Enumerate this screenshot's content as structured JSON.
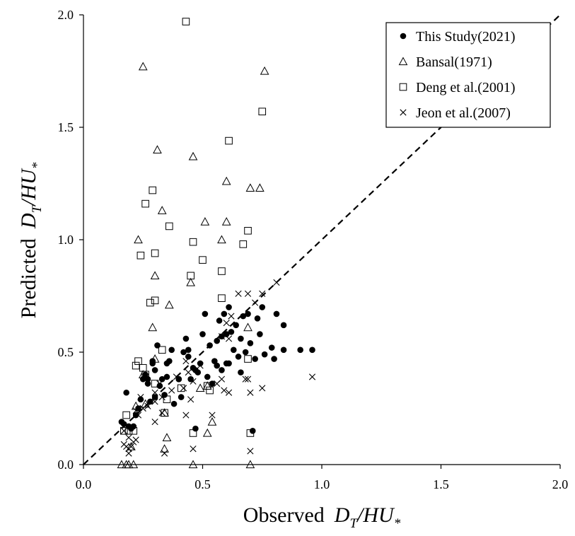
{
  "chart_data": {
    "type": "scatter",
    "xlabel": {
      "prefix": "Observed",
      "var": "D",
      "sub": "T",
      "rest": "/HU",
      "star": "*"
    },
    "ylabel": {
      "prefix": "Predicted",
      "var": "D",
      "sub": "T",
      "rest": "/HU",
      "star": "*"
    },
    "xlim": [
      0,
      2
    ],
    "ylim": [
      0,
      2
    ],
    "xticks": [
      "0.0",
      "0.5",
      "1.0",
      "1.5",
      "2.0"
    ],
    "yticks": [
      "0.0",
      "0.5",
      "1.0",
      "1.5",
      "2.0"
    ],
    "reference_line": {
      "style": "dashed",
      "from": [
        0,
        0
      ],
      "to": [
        2,
        2
      ]
    },
    "legend_position": "top-right",
    "series": [
      {
        "name": "This Study(2021)",
        "marker": "filled-circle",
        "points": [
          [
            0.16,
            0.19
          ],
          [
            0.17,
            0.18
          ],
          [
            0.18,
            0.32
          ],
          [
            0.19,
            0.17
          ],
          [
            0.2,
            0.16
          ],
          [
            0.21,
            0.17
          ],
          [
            0.22,
            0.22
          ],
          [
            0.23,
            0.25
          ],
          [
            0.24,
            0.29
          ],
          [
            0.25,
            0.38
          ],
          [
            0.26,
            0.4
          ],
          [
            0.27,
            0.36
          ],
          [
            0.28,
            0.28
          ],
          [
            0.29,
            0.45
          ],
          [
            0.3,
            0.42
          ],
          [
            0.31,
            0.53
          ],
          [
            0.3,
            0.3
          ],
          [
            0.32,
            0.35
          ],
          [
            0.33,
            0.38
          ],
          [
            0.34,
            0.31
          ],
          [
            0.35,
            0.39
          ],
          [
            0.36,
            0.46
          ],
          [
            0.37,
            0.51
          ],
          [
            0.38,
            0.27
          ],
          [
            0.4,
            0.38
          ],
          [
            0.41,
            0.3
          ],
          [
            0.42,
            0.5
          ],
          [
            0.43,
            0.56
          ],
          [
            0.44,
            0.48
          ],
          [
            0.45,
            0.38
          ],
          [
            0.46,
            0.43
          ],
          [
            0.47,
            0.42
          ],
          [
            0.48,
            0.41
          ],
          [
            0.49,
            0.45
          ],
          [
            0.5,
            0.58
          ],
          [
            0.51,
            0.67
          ],
          [
            0.52,
            0.39
          ],
          [
            0.53,
            0.53
          ],
          [
            0.54,
            0.36
          ],
          [
            0.55,
            0.46
          ],
          [
            0.56,
            0.55
          ],
          [
            0.57,
            0.64
          ],
          [
            0.58,
            0.57
          ],
          [
            0.59,
            0.67
          ],
          [
            0.6,
            0.58
          ],
          [
            0.61,
            0.7
          ],
          [
            0.62,
            0.59
          ],
          [
            0.63,
            0.51
          ],
          [
            0.64,
            0.62
          ],
          [
            0.65,
            0.48
          ],
          [
            0.66,
            0.56
          ],
          [
            0.67,
            0.66
          ],
          [
            0.68,
            0.5
          ],
          [
            0.69,
            0.67
          ],
          [
            0.7,
            0.54
          ],
          [
            0.71,
            0.15
          ],
          [
            0.72,
            0.47
          ],
          [
            0.73,
            0.65
          ],
          [
            0.74,
            0.58
          ],
          [
            0.75,
            0.7
          ],
          [
            0.76,
            0.49
          ],
          [
            0.79,
            0.52
          ],
          [
            0.8,
            0.47
          ],
          [
            0.81,
            0.67
          ],
          [
            0.84,
            0.62
          ],
          [
            0.84,
            0.51
          ],
          [
            0.91,
            0.51
          ],
          [
            0.96,
            0.51
          ],
          [
            0.47,
            0.16
          ],
          [
            0.58,
            0.42
          ],
          [
            0.6,
            0.45
          ],
          [
            0.44,
            0.51
          ],
          [
            0.4,
            0.38
          ],
          [
            0.35,
            0.45
          ],
          [
            0.27,
            0.38
          ],
          [
            0.29,
            0.46
          ],
          [
            0.66,
            0.41
          ],
          [
            0.61,
            0.45
          ],
          [
            0.56,
            0.44
          ]
        ]
      },
      {
        "name": "Bansal(1971)",
        "marker": "open-triangle",
        "points": [
          [
            0.25,
            1.77
          ],
          [
            0.76,
            1.75
          ],
          [
            0.31,
            1.4
          ],
          [
            0.46,
            1.37
          ],
          [
            0.6,
            1.26
          ],
          [
            0.7,
            1.23
          ],
          [
            0.74,
            1.23
          ],
          [
            0.33,
            1.13
          ],
          [
            0.51,
            1.08
          ],
          [
            0.6,
            1.08
          ],
          [
            0.23,
            1.0
          ],
          [
            0.58,
            1.0
          ],
          [
            0.3,
            0.84
          ],
          [
            0.45,
            0.81
          ],
          [
            0.36,
            0.71
          ],
          [
            0.29,
            0.61
          ],
          [
            0.69,
            0.61
          ],
          [
            0.3,
            0.47
          ],
          [
            0.25,
            0.4
          ],
          [
            0.49,
            0.34
          ],
          [
            0.52,
            0.35
          ],
          [
            0.26,
            0.27
          ],
          [
            0.34,
            0.23
          ],
          [
            0.35,
            0.12
          ],
          [
            0.52,
            0.14
          ],
          [
            0.54,
            0.19
          ],
          [
            0.34,
            0.07
          ],
          [
            0.16,
            0.0
          ],
          [
            0.18,
            0.0
          ],
          [
            0.19,
            0.0
          ],
          [
            0.21,
            0.0
          ],
          [
            0.46,
            0.0
          ],
          [
            0.7,
            0.0
          ],
          [
            0.2,
            0.08
          ],
          [
            0.22,
            0.26
          ]
        ]
      },
      {
        "name": "Deng et al.(2001)",
        "marker": "open-square",
        "points": [
          [
            0.43,
            1.97
          ],
          [
            0.75,
            1.57
          ],
          [
            0.61,
            1.44
          ],
          [
            0.29,
            1.22
          ],
          [
            0.26,
            1.16
          ],
          [
            0.36,
            1.06
          ],
          [
            0.69,
            1.04
          ],
          [
            0.46,
            0.99
          ],
          [
            0.67,
            0.98
          ],
          [
            0.3,
            0.94
          ],
          [
            0.24,
            0.93
          ],
          [
            0.5,
            0.91
          ],
          [
            0.58,
            0.86
          ],
          [
            0.45,
            0.84
          ],
          [
            0.58,
            0.74
          ],
          [
            0.3,
            0.73
          ],
          [
            0.28,
            0.72
          ],
          [
            0.23,
            0.46
          ],
          [
            0.22,
            0.44
          ],
          [
            0.25,
            0.43
          ],
          [
            0.33,
            0.51
          ],
          [
            0.69,
            0.47
          ],
          [
            0.26,
            0.4
          ],
          [
            0.3,
            0.36
          ],
          [
            0.41,
            0.34
          ],
          [
            0.52,
            0.35
          ],
          [
            0.53,
            0.33
          ],
          [
            0.35,
            0.29
          ],
          [
            0.34,
            0.23
          ],
          [
            0.18,
            0.22
          ],
          [
            0.17,
            0.15
          ],
          [
            0.19,
            0.15
          ],
          [
            0.21,
            0.15
          ],
          [
            0.46,
            0.14
          ],
          [
            0.7,
            0.14
          ]
        ]
      },
      {
        "name": "Jeon et al.(2007)",
        "marker": "cross",
        "points": [
          [
            0.81,
            0.81
          ],
          [
            0.69,
            0.76
          ],
          [
            0.65,
            0.76
          ],
          [
            0.75,
            0.76
          ],
          [
            0.72,
            0.72
          ],
          [
            0.62,
            0.66
          ],
          [
            0.6,
            0.63
          ],
          [
            0.58,
            0.57
          ],
          [
            0.61,
            0.56
          ],
          [
            0.49,
            0.44
          ],
          [
            0.43,
            0.46
          ],
          [
            0.44,
            0.41
          ],
          [
            0.39,
            0.39
          ],
          [
            0.68,
            0.38
          ],
          [
            0.69,
            0.38
          ],
          [
            0.58,
            0.38
          ],
          [
            0.56,
            0.36
          ],
          [
            0.46,
            0.37
          ],
          [
            0.42,
            0.34
          ],
          [
            0.37,
            0.33
          ],
          [
            0.3,
            0.32
          ],
          [
            0.32,
            0.36
          ],
          [
            0.33,
            0.3
          ],
          [
            0.3,
            0.28
          ],
          [
            0.27,
            0.26
          ],
          [
            0.25,
            0.25
          ],
          [
            0.22,
            0.24
          ],
          [
            0.23,
            0.22
          ],
          [
            0.24,
            0.3
          ],
          [
            0.59,
            0.33
          ],
          [
            0.61,
            0.32
          ],
          [
            0.7,
            0.32
          ],
          [
            0.75,
            0.34
          ],
          [
            0.96,
            0.39
          ],
          [
            0.43,
            0.22
          ],
          [
            0.54,
            0.22
          ],
          [
            0.45,
            0.29
          ],
          [
            0.33,
            0.23
          ],
          [
            0.3,
            0.19
          ],
          [
            0.22,
            0.11
          ],
          [
            0.21,
            0.1
          ],
          [
            0.2,
            0.08
          ],
          [
            0.19,
            0.07
          ],
          [
            0.17,
            0.09
          ],
          [
            0.18,
            0.08
          ],
          [
            0.19,
            0.05
          ],
          [
            0.34,
            0.05
          ],
          [
            0.46,
            0.07
          ],
          [
            0.7,
            0.06
          ],
          [
            0.17,
            0.15
          ],
          [
            0.19,
            0.12
          ]
        ]
      }
    ]
  }
}
